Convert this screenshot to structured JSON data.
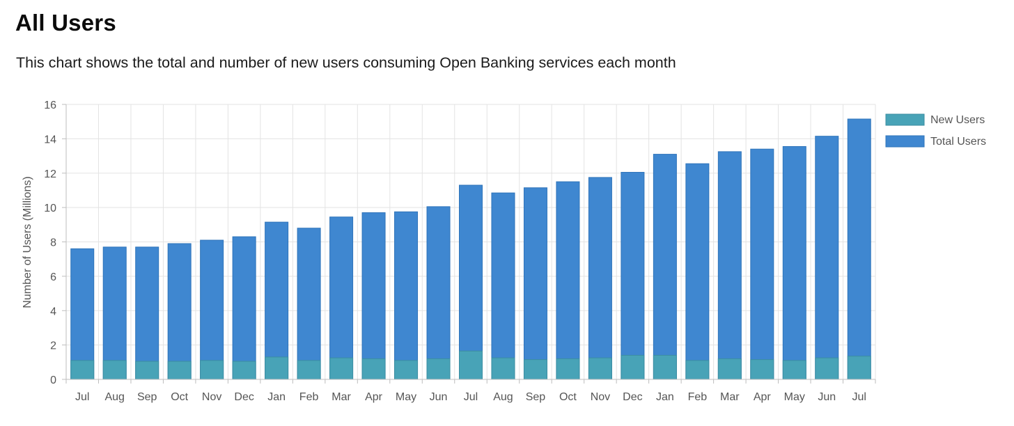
{
  "page": {
    "title": "All Users",
    "subtitle": "This chart shows the total and number of new users consuming Open Banking services each month"
  },
  "chart_data": {
    "type": "bar",
    "title": "",
    "xlabel": "",
    "ylabel": "Number of Users (Millions)",
    "ylim": [
      0,
      16
    ],
    "yticks": [
      0,
      2,
      4,
      6,
      8,
      10,
      12,
      14,
      16
    ],
    "grid": true,
    "legend_position": "top-right",
    "categories": [
      "Jul",
      "Aug",
      "Sep",
      "Oct",
      "Nov",
      "Dec",
      "Jan",
      "Feb",
      "Mar",
      "Apr",
      "May",
      "Jun",
      "Jul",
      "Aug",
      "Sep",
      "Oct",
      "Nov",
      "Dec",
      "Jan",
      "Feb",
      "Mar",
      "Apr",
      "May",
      "Jun",
      "Jul"
    ],
    "series": [
      {
        "name": "New Users",
        "color": "#48a3b7",
        "values": [
          1.1,
          1.1,
          1.05,
          1.05,
          1.1,
          1.05,
          1.3,
          1.1,
          1.25,
          1.2,
          1.1,
          1.2,
          1.65,
          1.25,
          1.15,
          1.2,
          1.25,
          1.4,
          1.4,
          1.1,
          1.2,
          1.15,
          1.1,
          1.25,
          1.35
        ]
      },
      {
        "name": "Total Users",
        "color": "#3f87d0",
        "values": [
          7.6,
          7.7,
          7.7,
          7.9,
          8.1,
          8.3,
          9.15,
          8.8,
          9.45,
          9.7,
          9.75,
          10.05,
          11.3,
          10.85,
          11.15,
          11.5,
          11.75,
          12.05,
          13.1,
          12.55,
          13.25,
          13.4,
          13.55,
          14.15,
          15.15
        ]
      }
    ]
  }
}
